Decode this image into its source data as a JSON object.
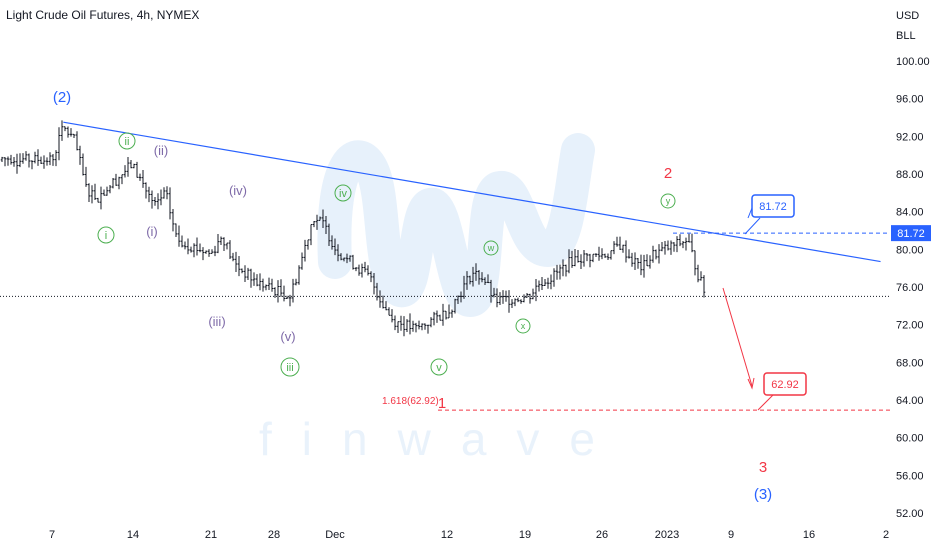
{
  "header": {
    "title": "Light Crude Oil Futures, 4h, NYMEX"
  },
  "axis": {
    "currency": "USD",
    "unit": "BLL"
  },
  "chart_data": {
    "type": "candlestick",
    "title": "Light Crude Oil Futures, 4h, NYMEX",
    "y_ticks": [
      "100.00",
      "96.00",
      "92.00",
      "88.00",
      "84.00",
      "80.00",
      "76.00",
      "72.00",
      "68.00",
      "64.00",
      "60.00",
      "56.00",
      "52.00"
    ],
    "ylim": [
      50.5,
      103.5
    ],
    "x_ticks": [
      "7",
      "14",
      "21",
      "28",
      "Dec",
      "12",
      "19",
      "26",
      "2023",
      "9",
      "16",
      "2"
    ],
    "current_price": 75.0,
    "price_path": [
      [
        "Nov 7",
        89.5
      ],
      [
        "Nov 8",
        93.0
      ],
      [
        "Nov 9",
        91.5
      ],
      [
        "Nov 10",
        86.5
      ],
      [
        "Nov 11",
        85.5
      ],
      [
        "Nov 14",
        89.0
      ],
      [
        "Nov 15",
        87.0
      ],
      [
        "Nov 16",
        84.5
      ],
      [
        "Nov 17",
        86.0
      ],
      [
        "Nov 18",
        81.0
      ],
      [
        "Nov 21",
        79.5
      ],
      [
        "Nov 22",
        81.5
      ],
      [
        "Nov 23",
        78.5
      ],
      [
        "Nov 24",
        77.5
      ],
      [
        "Nov 25",
        76.5
      ],
      [
        "Nov 28",
        75.0
      ],
      [
        "Nov 29",
        79.0
      ],
      [
        "Nov 30",
        83.5
      ],
      [
        "Dec 1",
        82.5
      ],
      [
        "Dec 2",
        80.0
      ],
      [
        "Dec 5",
        77.0
      ],
      [
        "Dec 6",
        74.5
      ],
      [
        "Dec 7",
        72.5
      ],
      [
        "Dec 8",
        72.0
      ],
      [
        "Dec 9",
        71.5
      ],
      [
        "Dec 12",
        73.5
      ],
      [
        "Dec 13",
        75.5
      ],
      [
        "Dec 14",
        77.5
      ],
      [
        "Dec 15",
        77.0
      ],
      [
        "Dec 16",
        74.5
      ],
      [
        "Dec 19",
        75.0
      ],
      [
        "Dec 20",
        76.5
      ],
      [
        "Dec 21",
        77.0
      ],
      [
        "Dec 22",
        78.0
      ],
      [
        "Dec 23",
        79.0
      ],
      [
        "Dec 26",
        79.5
      ],
      [
        "Dec 27",
        80.5
      ],
      [
        "Dec 28",
        79.0
      ],
      [
        "Dec 29",
        78.0
      ],
      [
        "Dec 30",
        79.5
      ],
      [
        "Jan 2",
        81.0
      ],
      [
        "Jan 3",
        77.0
      ],
      [
        "Jan 4",
        74.0
      ],
      [
        "Jan 5",
        74.5
      ]
    ],
    "trendline": {
      "from": [
        "Nov 8",
        93.5
      ],
      "to": [
        "Jan 19",
        78.7
      ]
    },
    "annotations": [
      {
        "text": "81.72",
        "price": 81.72,
        "color": "#2962ff"
      },
      {
        "text": "62.92",
        "price": 62.92,
        "color": "#f23645"
      },
      {
        "text": "1.618(62.92)",
        "color": "#f23645"
      }
    ],
    "wave_labels": [
      {
        "text": "(2)",
        "color": "#2962ff"
      },
      {
        "text": "2",
        "color": "#f23645"
      },
      {
        "text": "1",
        "color": "#f23645"
      },
      {
        "text": "3",
        "color": "#f23645"
      },
      {
        "text": "(3)",
        "color": "#2962ff"
      },
      {
        "text": "i",
        "color": "#4caf50"
      },
      {
        "text": "ii",
        "color": "#4caf50"
      },
      {
        "text": "iii",
        "color": "#4caf50"
      },
      {
        "text": "iv",
        "color": "#4caf50"
      },
      {
        "text": "v",
        "color": "#4caf50"
      },
      {
        "text": "w",
        "color": "#4caf50"
      },
      {
        "text": "x",
        "color": "#4caf50"
      },
      {
        "text": "y",
        "color": "#4caf50"
      },
      {
        "text": "(i)",
        "color": "#7e6aa8"
      },
      {
        "text": "(ii)",
        "color": "#7e6aa8"
      },
      {
        "text": "(iii)",
        "color": "#7e6aa8"
      },
      {
        "text": "(iv)",
        "color": "#7e6aa8"
      },
      {
        "text": "(v)",
        "color": "#7e6aa8"
      }
    ],
    "watermark": "finwave"
  },
  "colors": {
    "blue": "#2962ff",
    "red": "#f23645",
    "green": "#4caf50",
    "purple": "#7e6aa8",
    "watermark": "#e9f2fb"
  }
}
